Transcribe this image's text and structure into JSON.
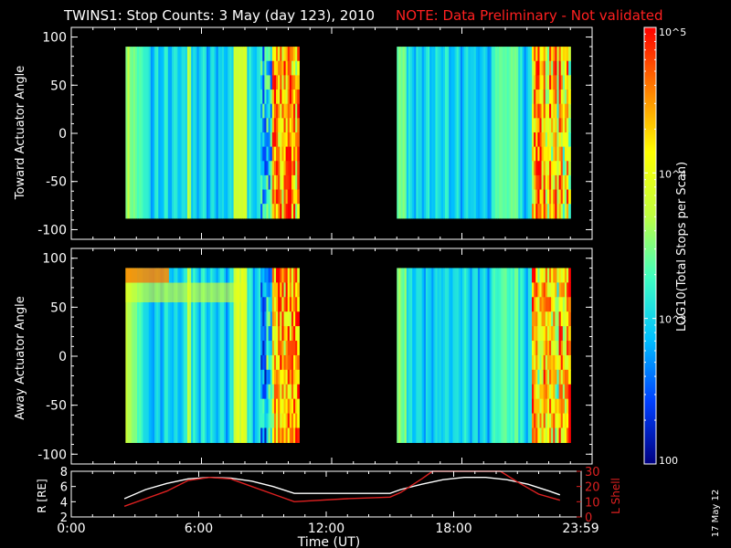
{
  "title": {
    "main": "TWINS1: Stop Counts:  3 May (day 123), 2010",
    "note": "NOTE: Data Preliminary - Not validated",
    "note_color": "#ff2020"
  },
  "side_date": "17 May 12",
  "colors": {
    "background": "#000000",
    "axes": "#ffffff",
    "red_series": "#dd2020"
  },
  "colorbar": {
    "label": "LOG10(Total Stops per Scan)",
    "scale": "log",
    "range": [
      100,
      100000
    ],
    "ticks": [
      {
        "value": 100,
        "label": "100"
      },
      {
        "value": 1000,
        "label": "10^3"
      },
      {
        "value": 10000,
        "label": "10^4"
      },
      {
        "value": 100000,
        "label": "10^5"
      }
    ],
    "colormap": [
      "#000080",
      "#0040ff",
      "#00c0ff",
      "#40ffc0",
      "#c0ff40",
      "#ffff00",
      "#ff8000",
      "#ff0000"
    ]
  },
  "chart_data": [
    {
      "type": "heatmap",
      "ylabel": "Toward Actuator Angle",
      "ylim": [
        -110,
        110
      ],
      "yticks": [
        100,
        50,
        0,
        -50,
        -100
      ],
      "xlim": [
        0,
        24
      ],
      "data_blocks": [
        {
          "x_start": 2.5,
          "x_end": 10.5,
          "y_range": [
            -88,
            90
          ]
        },
        {
          "x_start": 15.0,
          "x_end": 23.0,
          "y_range": [
            -88,
            90
          ]
        }
      ]
    },
    {
      "type": "heatmap",
      "ylabel": "Away Actuator Angle",
      "ylim": [
        -110,
        110
      ],
      "yticks": [
        100,
        50,
        0,
        -50,
        -100
      ],
      "xlim": [
        0,
        24
      ],
      "data_blocks": [
        {
          "x_start": 2.5,
          "x_end": 10.5,
          "y_range": [
            -88,
            90
          ]
        },
        {
          "x_start": 15.0,
          "x_end": 23.0,
          "y_range": [
            -88,
            90
          ]
        }
      ]
    },
    {
      "type": "line",
      "ylabel": "R [RE]",
      "ylabel_right": "L Shell",
      "xlabel": "Time (UT)",
      "xlim": [
        0,
        24
      ],
      "ylim": [
        2,
        8
      ],
      "ylim_right": [
        0,
        30
      ],
      "yticks": [
        2,
        4,
        6,
        8
      ],
      "yticks_right": [
        0,
        10,
        20,
        30
      ],
      "xticks": [
        {
          "value": 0,
          "label": "0:00"
        },
        {
          "value": 6,
          "label": "6:00"
        },
        {
          "value": 12,
          "label": "12:00"
        },
        {
          "value": 18,
          "label": "18:00"
        },
        {
          "value": 23.98,
          "label": "23:59"
        }
      ],
      "series": [
        {
          "axis": "left",
          "color": "#ffffff",
          "x": [
            2.5,
            3.5,
            4.5,
            5.5,
            6.5,
            7.5,
            8.5,
            9.5,
            10.5,
            12,
            13,
            15,
            15.5,
            16.5,
            17.5,
            18.5,
            19.5,
            20.5,
            21.5,
            22.5,
            23
          ],
          "y": [
            4.4,
            5.6,
            6.4,
            7.0,
            7.2,
            7.1,
            6.7,
            6.0,
            5.1,
            5.1,
            5.1,
            5.1,
            5.6,
            6.3,
            6.9,
            7.2,
            7.2,
            6.9,
            6.3,
            5.4,
            4.9
          ]
        },
        {
          "axis": "right",
          "color": "#dd2020",
          "x": [
            2.5,
            3.5,
            4.5,
            5.5,
            6.5,
            7.5,
            8.5,
            9.5,
            10.5,
            13,
            15,
            15.5,
            16.5,
            17.0,
            20.2,
            21.0,
            22.0,
            23
          ],
          "y": [
            7,
            12,
            17,
            24,
            26,
            25,
            20,
            15,
            10,
            12,
            13,
            16,
            25,
            30,
            30,
            23,
            15,
            11
          ]
        }
      ]
    }
  ]
}
